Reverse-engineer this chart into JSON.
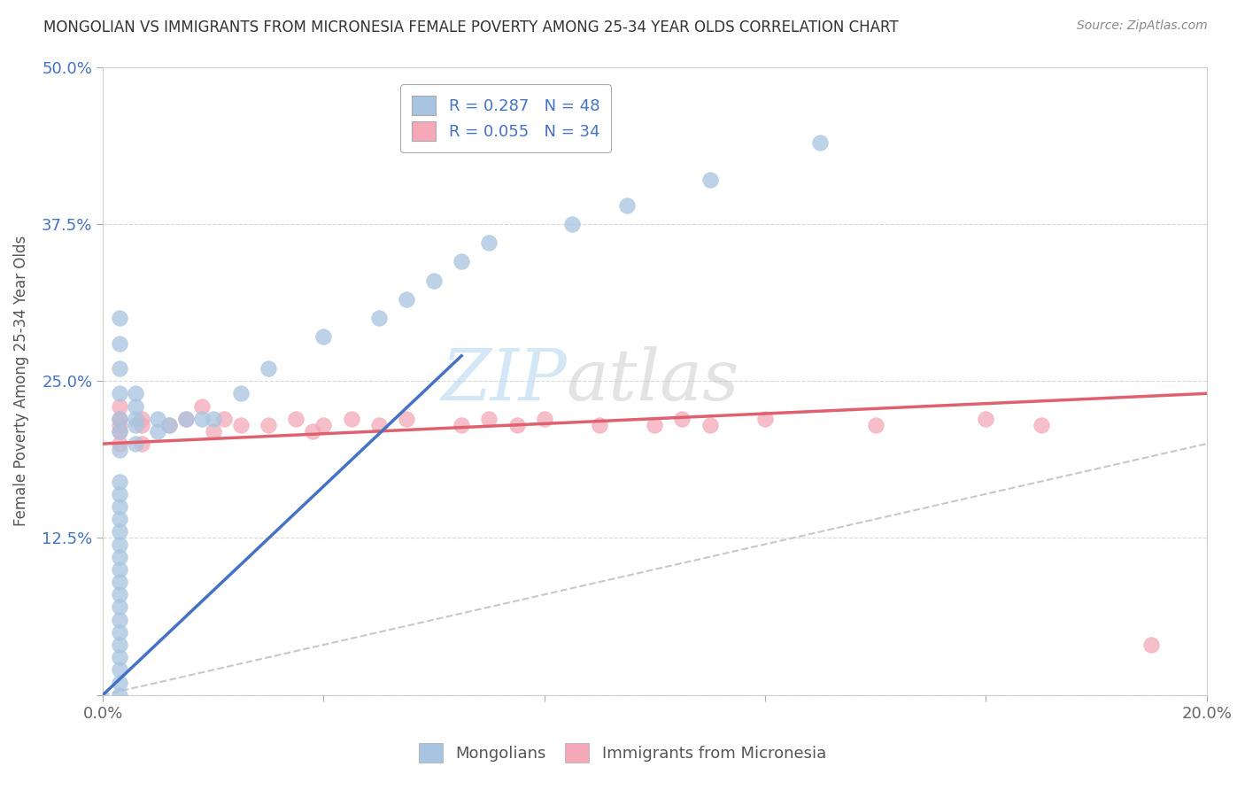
{
  "title": "MONGOLIAN VS IMMIGRANTS FROM MICRONESIA FEMALE POVERTY AMONG 25-34 YEAR OLDS CORRELATION CHART",
  "source": "Source: ZipAtlas.com",
  "ylabel": "Female Poverty Among 25-34 Year Olds",
  "xlim": [
    0.0,
    0.2
  ],
  "ylim": [
    0.0,
    0.5
  ],
  "xticks": [
    0.0,
    0.04,
    0.08,
    0.12,
    0.16,
    0.2
  ],
  "xticklabels": [
    "0.0%",
    "",
    "",
    "",
    "",
    "20.0%"
  ],
  "yticks": [
    0.0,
    0.125,
    0.25,
    0.375,
    0.5
  ],
  "yticklabels": [
    "",
    "12.5%",
    "25.0%",
    "37.5%",
    "50.0%"
  ],
  "mongolian_R": 0.287,
  "mongolian_N": 48,
  "micronesia_R": 0.055,
  "micronesia_N": 34,
  "mongolian_color": "#a8c4e0",
  "micronesia_color": "#f4a8b8",
  "mongolian_line_color": "#4472c4",
  "micronesia_line_color": "#e06070",
  "diagonal_color": "#c8c8c8",
  "background_color": "#ffffff",
  "grid_color": "#d8d8d8",
  "watermark_zip": "ZIP",
  "watermark_atlas": "atlas",
  "mongolian_x": [
    0.003,
    0.003,
    0.003,
    0.003,
    0.003,
    0.003,
    0.003,
    0.003,
    0.003,
    0.003,
    0.003,
    0.003,
    0.003,
    0.003,
    0.003,
    0.003,
    0.003,
    0.003,
    0.003,
    0.003,
    0.003,
    0.003,
    0.003,
    0.003,
    0.003,
    0.006,
    0.006,
    0.006,
    0.006,
    0.006,
    0.01,
    0.01,
    0.012,
    0.015,
    0.018,
    0.02,
    0.025,
    0.03,
    0.04,
    0.05,
    0.055,
    0.06,
    0.065,
    0.07,
    0.085,
    0.095,
    0.11,
    0.13
  ],
  "mongolian_y": [
    0.0,
    0.01,
    0.02,
    0.03,
    0.04,
    0.05,
    0.06,
    0.07,
    0.08,
    0.09,
    0.1,
    0.11,
    0.12,
    0.13,
    0.14,
    0.15,
    0.16,
    0.17,
    0.195,
    0.21,
    0.22,
    0.24,
    0.26,
    0.28,
    0.3,
    0.2,
    0.215,
    0.22,
    0.23,
    0.24,
    0.21,
    0.22,
    0.215,
    0.22,
    0.22,
    0.22,
    0.24,
    0.26,
    0.285,
    0.3,
    0.315,
    0.33,
    0.345,
    0.36,
    0.375,
    0.39,
    0.41,
    0.44
  ],
  "micronesia_x": [
    0.003,
    0.003,
    0.003,
    0.003,
    0.003,
    0.007,
    0.007,
    0.007,
    0.012,
    0.015,
    0.018,
    0.02,
    0.022,
    0.025,
    0.03,
    0.035,
    0.038,
    0.04,
    0.045,
    0.05,
    0.055,
    0.065,
    0.07,
    0.075,
    0.08,
    0.09,
    0.1,
    0.105,
    0.11,
    0.12,
    0.14,
    0.16,
    0.17,
    0.19
  ],
  "micronesia_y": [
    0.2,
    0.21,
    0.215,
    0.22,
    0.23,
    0.2,
    0.215,
    0.22,
    0.215,
    0.22,
    0.23,
    0.21,
    0.22,
    0.215,
    0.215,
    0.22,
    0.21,
    0.215,
    0.22,
    0.215,
    0.22,
    0.215,
    0.22,
    0.215,
    0.22,
    0.215,
    0.215,
    0.22,
    0.215,
    0.22,
    0.215,
    0.22,
    0.215,
    0.04
  ],
  "mongolian_line_x": [
    0.0,
    0.065
  ],
  "mongolian_line_y": [
    0.0,
    0.27
  ],
  "micronesia_line_x": [
    0.0,
    0.2
  ],
  "micronesia_line_y": [
    0.2,
    0.24
  ]
}
